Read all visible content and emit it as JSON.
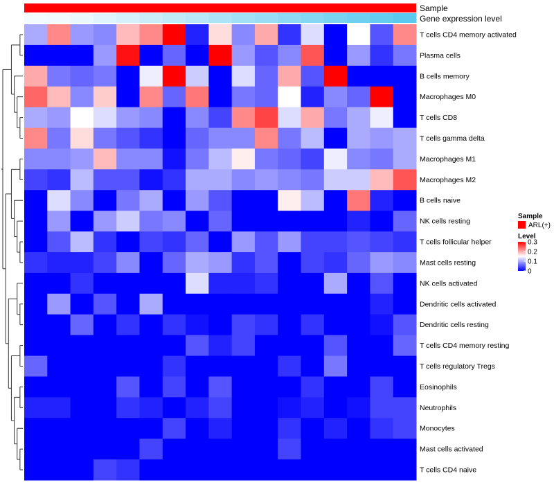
{
  "chart_data": {
    "type": "heatmap",
    "annotations": [
      {
        "name": "Sample",
        "label": "Sample",
        "color": "#ff0000"
      },
      {
        "name": "Gene expression level",
        "label": "Gene expression level",
        "values": [
          0.1,
          0.12,
          0.15,
          0.2,
          0.25,
          0.3,
          0.35,
          0.4,
          0.45,
          0.5,
          0.55,
          0.6,
          0.65,
          0.7,
          0.75,
          0.8,
          0.85
        ],
        "low_color": "#f4fbff",
        "high_color": "#5bc8ee"
      }
    ],
    "rows": [
      "T cells CD4 memory activated",
      "Plasma cells",
      "B cells memory",
      "Macrophages M0",
      "T cells CD8",
      "T cells gamma delta",
      "Macrophages M1",
      "Macrophages M2",
      "B cells naive",
      "NK cells resting",
      "T cells follicular helper",
      "Mast cells resting",
      "NK cells activated",
      "Dendritic cells activated",
      "Dendritic cells resting",
      "T cells CD4 memory resting",
      "T cells regulatory  Tregs",
      "Eosinophils",
      "Neutrophils",
      "Monocytes",
      "Mast cells activated",
      "T cells CD4 naive"
    ],
    "values": [
      [
        0.1,
        0.22,
        0.09,
        0.08,
        0.19,
        0.22,
        0.3,
        0.02,
        0.17,
        0.08,
        0.2,
        0.03,
        0.13,
        0.0,
        0.15,
        0.05,
        0.22
      ],
      [
        0.0,
        0.0,
        0.0,
        0.09,
        0.29,
        0.0,
        0.06,
        0.0,
        0.3,
        0.09,
        0.05,
        0.08,
        0.25,
        0.0,
        0.09,
        0.03,
        0.07
      ],
      [
        0.2,
        0.07,
        0.06,
        0.07,
        0.0,
        0.14,
        0.3,
        0.12,
        0.0,
        0.13,
        0.06,
        0.2,
        0.05,
        0.3,
        0.0,
        0.0,
        0.0
      ],
      [
        0.24,
        0.19,
        0.08,
        0.18,
        0.0,
        0.22,
        0.06,
        0.23,
        0.0,
        0.07,
        0.06,
        0.15,
        0.02,
        0.08,
        0.06,
        0.3,
        0.0
      ],
      [
        0.1,
        0.09,
        0.15,
        0.13,
        0.09,
        0.08,
        0.0,
        0.08,
        0.04,
        0.22,
        0.26,
        0.13,
        0.2,
        0.07,
        0.1,
        0.14,
        0.0
      ],
      [
        0.22,
        0.07,
        0.17,
        0.07,
        0.05,
        0.03,
        0.0,
        0.06,
        0.08,
        0.08,
        0.22,
        0.07,
        0.11,
        0.0,
        0.1,
        0.09,
        0.1
      ],
      [
        0.08,
        0.08,
        0.09,
        0.19,
        0.08,
        0.08,
        0.01,
        0.07,
        0.11,
        0.16,
        0.07,
        0.06,
        0.04,
        0.14,
        0.08,
        0.07,
        0.1
      ],
      [
        0.04,
        0.03,
        0.11,
        0.05,
        0.05,
        0.01,
        0.03,
        0.1,
        0.1,
        0.08,
        0.09,
        0.08,
        0.07,
        0.12,
        0.12,
        0.19,
        0.25
      ],
      [
        0.0,
        0.13,
        0.08,
        0.0,
        0.07,
        0.1,
        0.0,
        0.09,
        0.05,
        0.0,
        0.0,
        0.16,
        0.11,
        0.0,
        0.23,
        0.02,
        0.0
      ],
      [
        0.0,
        0.09,
        0.0,
        0.09,
        0.12,
        0.07,
        0.08,
        0.0,
        0.06,
        0.0,
        0.0,
        0.0,
        0.0,
        0.0,
        0.02,
        0.0,
        0.06
      ],
      [
        0.0,
        0.05,
        0.11,
        0.03,
        0.0,
        0.04,
        0.03,
        0.06,
        0.0,
        0.09,
        0.05,
        0.09,
        0.04,
        0.04,
        0.05,
        0.04,
        0.03
      ],
      [
        0.03,
        0.02,
        0.02,
        0.04,
        0.08,
        0.0,
        0.06,
        0.1,
        0.09,
        0.03,
        0.05,
        0.0,
        0.04,
        0.03,
        0.06,
        0.09,
        0.08
      ],
      [
        0.0,
        0.0,
        0.03,
        0.0,
        0.0,
        0.0,
        0.0,
        0.13,
        0.02,
        0.02,
        0.03,
        0.0,
        0.0,
        0.1,
        0.0,
        0.05,
        0.0
      ],
      [
        0.0,
        0.09,
        0.0,
        0.05,
        0.0,
        0.1,
        0.0,
        0.0,
        0.0,
        0.0,
        0.0,
        0.0,
        0.0,
        0.0,
        0.0,
        0.02,
        0.0
      ],
      [
        0.0,
        0.0,
        0.06,
        0.0,
        0.03,
        0.0,
        0.03,
        0.01,
        0.0,
        0.04,
        0.03,
        0.0,
        0.03,
        0.0,
        0.0,
        0.01,
        0.05
      ],
      [
        0.0,
        0.0,
        0.0,
        0.0,
        0.0,
        0.0,
        0.0,
        0.05,
        0.02,
        0.04,
        0.0,
        0.0,
        0.0,
        0.05,
        0.0,
        0.0,
        0.06
      ],
      [
        0.06,
        0.0,
        0.0,
        0.0,
        0.0,
        0.0,
        0.03,
        0.0,
        0.0,
        0.0,
        0.0,
        0.03,
        0.0,
        0.07,
        0.0,
        0.0,
        0.0
      ],
      [
        0.0,
        0.0,
        0.0,
        0.0,
        0.05,
        0.0,
        0.04,
        0.0,
        0.05,
        0.0,
        0.0,
        0.0,
        0.03,
        0.0,
        0.0,
        0.04,
        0.0
      ],
      [
        0.02,
        0.02,
        0.0,
        0.0,
        0.03,
        0.02,
        0.0,
        0.02,
        0.04,
        0.0,
        0.0,
        0.01,
        0.02,
        0.0,
        0.01,
        0.04,
        0.04
      ],
      [
        0.0,
        0.0,
        0.0,
        0.0,
        0.0,
        0.0,
        0.04,
        0.0,
        0.02,
        0.0,
        0.0,
        0.03,
        0.0,
        0.02,
        0.0,
        0.03,
        0.04
      ],
      [
        0.0,
        0.0,
        0.0,
        0.0,
        0.0,
        0.04,
        0.0,
        0.0,
        0.0,
        0.0,
        0.0,
        0.04,
        0.0,
        0.0,
        0.0,
        0.0,
        0.0
      ],
      [
        0.0,
        0.0,
        0.0,
        0.04,
        0.03,
        0.0,
        0.0,
        0.0,
        0.0,
        0.0,
        0.0,
        0.0,
        0.0,
        0.0,
        0.0,
        0.0,
        0.0
      ]
    ],
    "color_scale": {
      "min": 0,
      "mid": 0.15,
      "max": 0.3,
      "low": "#0000ff",
      "mid_color": "#ffffff",
      "high": "#ff0000"
    },
    "legend": {
      "sample_title": "Sample",
      "sample_entry": "ARL(+)",
      "sample_color": "#ff0000",
      "level_title": "Level",
      "level_ticks": [
        {
          "value": 0.3,
          "label": "0.3"
        },
        {
          "value": 0.2,
          "label": "0.2"
        },
        {
          "value": 0.1,
          "label": "0.1"
        },
        {
          "value": 0,
          "label": "0"
        }
      ],
      "placement": "right"
    },
    "row_dendrogram": true
  }
}
